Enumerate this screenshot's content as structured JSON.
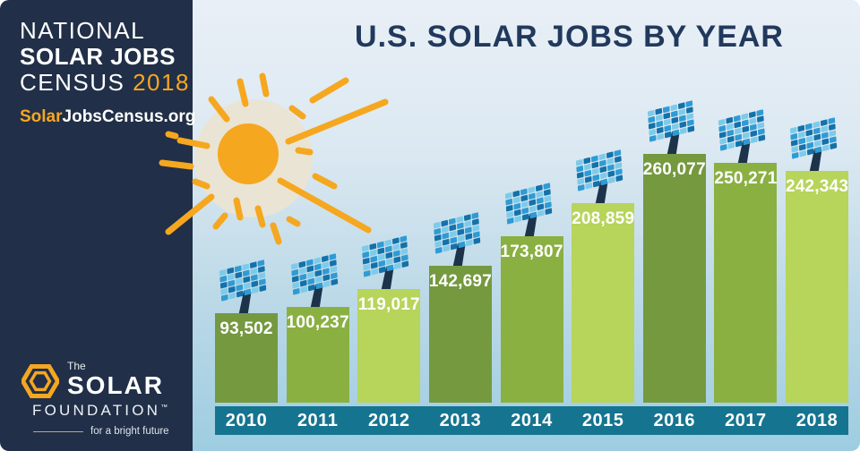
{
  "sidebar": {
    "census_line1": "NATIONAL",
    "census_line2": "SOLAR JOBS",
    "census_line3_prefix": "CENSUS ",
    "census_line3_year": "2018",
    "website_prefix": "Solar",
    "website_suffix": "JobsCensus.org",
    "logo": {
      "the": "The",
      "name": "SOLAR",
      "foundation": "FOUNDATION",
      "tm": "™",
      "tagline": "for a bright future"
    }
  },
  "header": {
    "title": "U.S. SOLAR JOBS BY YEAR"
  },
  "chart_data": {
    "type": "bar",
    "title": "U.S. SOLAR JOBS BY YEAR",
    "categories": [
      "2010",
      "2011",
      "2012",
      "2013",
      "2014",
      "2015",
      "2016",
      "2017",
      "2018"
    ],
    "values": [
      93502,
      100237,
      119017,
      142697,
      173807,
      208859,
      260077,
      250271,
      242343
    ],
    "value_labels": [
      "93,502",
      "100,237",
      "119,017",
      "142,697",
      "173,807",
      "208,859",
      "260,077",
      "250,271",
      "242,343"
    ],
    "xlabel": "",
    "ylabel": "",
    "ylim": [
      0,
      260077
    ],
    "gridlines": false,
    "legend": null,
    "bar_color_cycle": [
      "#75993f",
      "#8ab042",
      "#b7d45b"
    ],
    "axis_band_color": "#15748f",
    "panel_cell_colors": [
      "#7ecbe9",
      "#2f9bd4",
      "#1471a9"
    ],
    "panel_pole_color": "#1d3349"
  },
  "colors": {
    "navy": "#212f48",
    "accent_orange": "#f5a71f",
    "title_navy": "#21395c",
    "teal_band": "#15748f",
    "bg_top": "#e9eff6",
    "bg_bottom": "#9ecde1",
    "sun_halo": "#e9e4d4",
    "white": "#ffffff"
  }
}
